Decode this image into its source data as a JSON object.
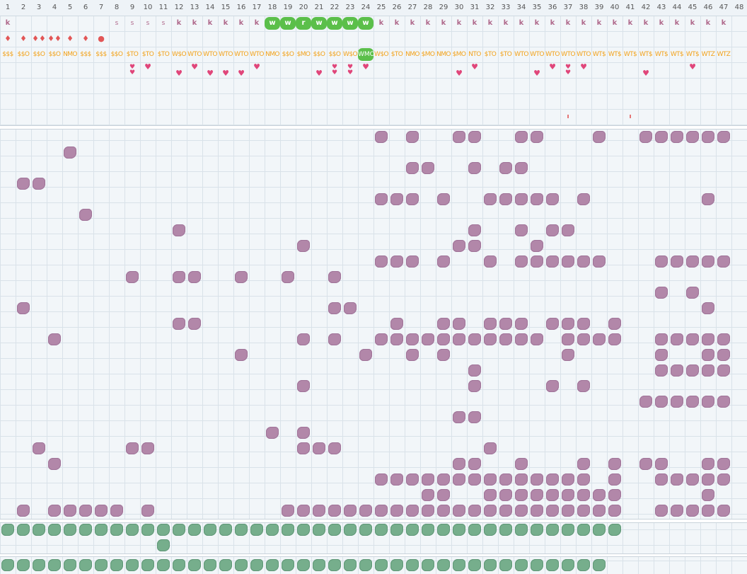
{
  "column_numbers": [
    "1",
    "2",
    "3",
    "4",
    "5",
    "6",
    "7",
    "8",
    "9",
    "10",
    "11",
    "12",
    "13",
    "14",
    "15",
    "16",
    "17",
    "18",
    "19",
    "20",
    "21",
    "22",
    "23",
    "24",
    "25",
    "26",
    "27",
    "28",
    "29",
    "30",
    "31",
    "32",
    "33",
    "34",
    "35",
    "36",
    "37",
    "38",
    "39",
    "40",
    "41",
    "42",
    "43",
    "44",
    "45",
    "46",
    "47",
    "48"
  ],
  "k_row": {
    "glyph": "k",
    "cols": [
      1,
      12,
      13,
      14,
      15,
      16,
      17,
      25,
      26,
      27,
      28,
      29,
      30,
      31,
      32,
      33,
      34,
      35,
      36,
      37,
      38,
      39,
      40,
      41,
      42,
      43,
      44,
      45,
      46,
      47
    ]
  },
  "s_row": {
    "glyph": "s",
    "cols": [
      8,
      9,
      10,
      11
    ]
  },
  "w_row": {
    "glyph": "w",
    "r_glyph": "r",
    "cols": [
      18,
      19,
      21,
      22,
      23,
      24
    ],
    "r_col": 20
  },
  "drops": {
    "glyph": "♦",
    "double": "♦♦",
    "dot": "●",
    "cells": [
      {
        "c": 1,
        "g": "♦"
      },
      {
        "c": 2,
        "g": "♦"
      },
      {
        "c": 3,
        "g": "♦♦"
      },
      {
        "c": 4,
        "g": "♦♦"
      },
      {
        "c": 5,
        "g": "♦"
      },
      {
        "c": 6,
        "g": "♦"
      },
      {
        "c": 7,
        "g": "●"
      }
    ]
  },
  "codes": [
    "$$$",
    "$$O",
    "$$O",
    "$$O",
    "NMO",
    "$$$",
    "$$$",
    "$$O",
    "$TO",
    "$TO",
    "$TO",
    "W$O",
    "WTO",
    "WTO",
    "WTO",
    "WTO",
    "WTO",
    "NMO",
    "$$O",
    "$MO",
    "$$O",
    "$$O",
    "W$O",
    "WMO",
    "W$O",
    "$TO",
    "NMO",
    "$MO",
    "NMO",
    "$MO",
    "NTO",
    "$TO",
    "$TO",
    "WTO",
    "WTO",
    "WTO",
    "WTO",
    "WTO",
    "WT$",
    "WT$",
    "WT$",
    "WT$",
    "WT$",
    "WT$",
    "WT$",
    "WTZ",
    "WTZ"
  ],
  "highlight_code_col": 24,
  "hearts": {
    "glyph": "♥",
    "double": "❤\n❤",
    "top": [
      10,
      13,
      17,
      24,
      31,
      36,
      38,
      45
    ],
    "bottom": [
      12,
      14,
      15,
      16,
      21,
      30,
      35,
      42
    ],
    "double_cols": [
      9,
      22,
      23,
      37
    ]
  },
  "ticks": {
    "glyph": "ı",
    "cols": [
      37,
      41
    ]
  },
  "colors": {
    "purple": "#b287a9",
    "green": "#76ae8c",
    "k": "#b06a8c",
    "drop": "#e25656",
    "heart": "#e0467a",
    "code": "#f2a21b",
    "highlight": "#5bbf4a"
  },
  "purple_rows": [
    [
      25,
      27,
      30,
      31,
      34,
      35,
      39,
      42,
      43,
      44,
      45,
      46,
      47
    ],
    [
      5
    ],
    [
      27,
      28,
      31,
      33,
      34
    ],
    [
      2,
      3
    ],
    [
      25,
      26,
      27,
      29,
      32,
      33,
      34,
      35,
      36,
      38,
      46
    ],
    [
      6
    ],
    [
      12,
      31,
      34,
      36,
      37
    ],
    [
      20,
      30,
      31,
      35
    ],
    [
      25,
      26,
      27,
      29,
      32,
      34,
      35,
      36,
      37,
      38,
      39,
      43,
      44,
      45,
      46,
      47
    ],
    [
      9,
      12,
      13,
      16,
      19,
      22
    ],
    [
      43,
      45
    ],
    [
      2,
      22,
      23,
      46
    ],
    [
      12,
      13,
      26,
      29,
      30,
      32,
      33,
      34,
      36,
      37,
      38,
      40
    ],
    [
      4,
      20,
      22,
      25,
      26,
      27,
      28,
      29,
      30,
      31,
      32,
      33,
      34,
      35,
      37,
      38,
      39,
      40,
      43,
      44,
      45,
      46,
      47
    ],
    [
      16,
      24,
      27,
      29,
      37,
      43,
      46,
      47
    ],
    [
      31,
      43,
      44,
      45,
      46,
      47
    ],
    [
      20,
      31,
      36,
      38
    ],
    [
      42,
      43,
      44,
      45,
      46,
      47
    ],
    [
      30,
      31
    ],
    [
      18,
      20
    ],
    [
      3,
      9,
      10,
      20,
      21,
      22,
      32
    ],
    [
      4,
      30,
      31,
      34,
      38,
      40,
      42,
      43,
      46,
      47
    ],
    [
      25,
      26,
      27,
      28,
      29,
      30,
      31,
      32,
      33,
      34,
      35,
      36,
      37,
      38,
      40,
      43,
      44,
      45,
      46,
      47
    ],
    [
      28,
      29,
      32,
      33,
      34,
      35,
      36,
      37,
      38,
      39,
      40,
      46
    ],
    [
      2,
      4,
      5,
      6,
      7,
      8,
      10,
      19,
      20,
      21,
      22,
      23,
      24,
      25,
      26,
      27,
      28,
      29,
      30,
      31,
      32,
      33,
      34,
      35,
      36,
      37,
      38,
      39,
      40,
      43,
      44,
      45,
      46,
      47
    ]
  ],
  "green_rows": [
    {
      "from": 1,
      "to": 40
    },
    {
      "from": 11,
      "to": 11
    },
    {
      "from": 1,
      "to": 39
    }
  ]
}
